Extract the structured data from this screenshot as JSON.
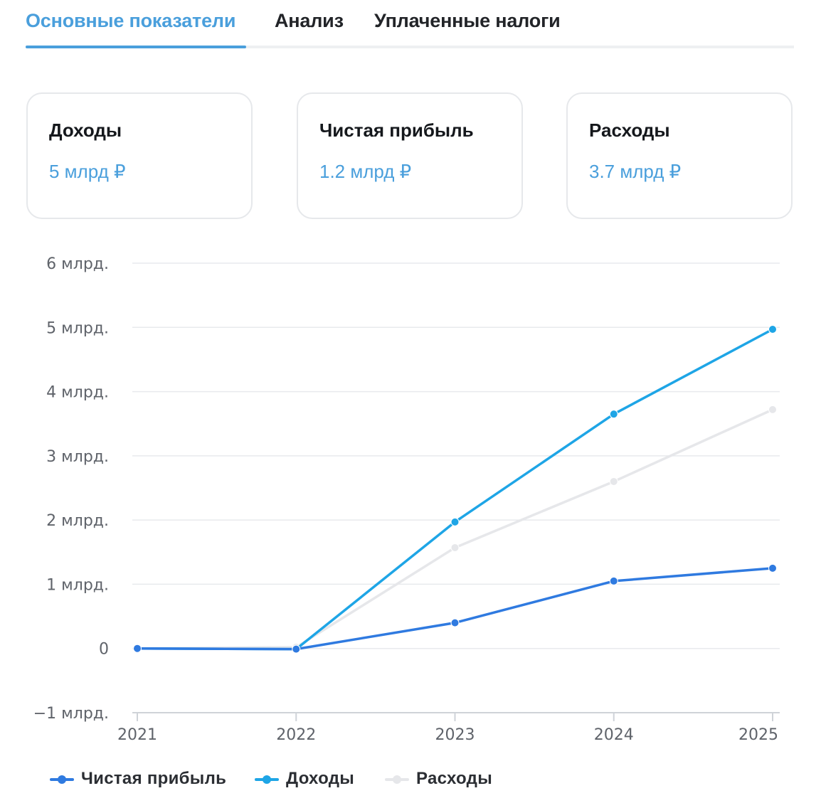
{
  "tabs": [
    {
      "label": "Основные показатели",
      "active": true
    },
    {
      "label": "Анализ",
      "active": false
    },
    {
      "label": "Уплаченные налоги",
      "active": false
    }
  ],
  "cards": [
    {
      "label": "Доходы",
      "value": "5 млрд ₽"
    },
    {
      "label": "Чистая прибыль",
      "value": "1.2 млрд ₽"
    },
    {
      "label": "Расходы",
      "value": "3.7 млрд ₽"
    }
  ],
  "colors": {
    "accent": "#4a9fdc",
    "net_profit": "#2f7ae0",
    "income": "#1ea5e6",
    "expenses": "#e6e7ea"
  },
  "chart_data": {
    "type": "line",
    "x": [
      "2021",
      "2022",
      "2023",
      "2024",
      "2025"
    ],
    "y_ticks": [
      {
        "value": 6,
        "label": "6 млрд."
      },
      {
        "value": 5,
        "label": "5 млрд."
      },
      {
        "value": 4,
        "label": "4 млрд."
      },
      {
        "value": 3,
        "label": "3 млрд."
      },
      {
        "value": 2,
        "label": "2 млрд."
      },
      {
        "value": 1,
        "label": "1 млрд."
      },
      {
        "value": 0,
        "label": "0"
      },
      {
        "value": -1,
        "label": "−1 млрд."
      }
    ],
    "ylim": [
      -1,
      6
    ],
    "grid": true,
    "legend_position": "bottom-left",
    "series": [
      {
        "name": "Расходы",
        "color": "#e6e7ea",
        "values": [
          0,
          0.02,
          1.57,
          2.6,
          3.72
        ]
      },
      {
        "name": "Доходы",
        "color": "#1ea5e6",
        "values": [
          0,
          -0.01,
          1.97,
          3.65,
          4.97
        ]
      },
      {
        "name": "Чистая прибыль",
        "color": "#2f7ae0",
        "values": [
          0,
          -0.01,
          0.4,
          1.05,
          1.25
        ]
      }
    ],
    "legend": [
      "Чистая прибыль",
      "Доходы",
      "Расходы"
    ]
  }
}
